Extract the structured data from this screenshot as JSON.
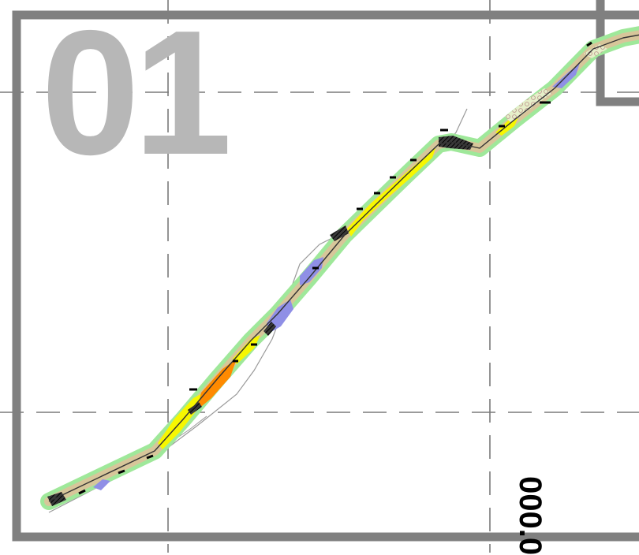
{
  "sheet": {
    "number": "01",
    "chainage_label": "000.0"
  },
  "colors": {
    "frame": "#808080",
    "grid": "#7a7a7a",
    "sheet_number": "#b7b7b7",
    "corridor_buffer": "#9fe89a",
    "zone_yellow": "#f7f700",
    "zone_orange": "#ff8a00",
    "zone_tan": "#d7c69a",
    "zone_purple": "#8f8fe6",
    "hatch": "#2a2a2a",
    "centerline": "#333333",
    "terrain_line": "#9a9a9a"
  },
  "legend_icons": [
    "route-corridor-icon",
    "centerline-icon",
    "terrain-contour-icon",
    "hatched-area-icon"
  ]
}
